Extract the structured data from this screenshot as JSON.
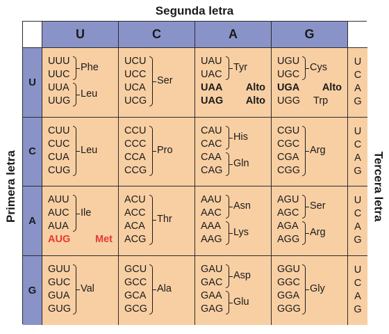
{
  "titles": {
    "second": "Segunda letra",
    "first": "Primera letra",
    "third": "Tercera letra"
  },
  "bases": [
    "U",
    "C",
    "A",
    "G"
  ],
  "colors": {
    "header": "#8a93c8",
    "cell": "#f8cfa3",
    "start": "#e53935",
    "border": "#2b2b2b"
  },
  "cells": [
    [
      {
        "codons": [
          "UUU",
          "UUC",
          "UUA",
          "UUG"
        ],
        "groups": [
          {
            "rows": [
              0,
              1
            ],
            "aa": "Phe"
          },
          {
            "rows": [
              2,
              3
            ],
            "aa": "Leu"
          }
        ]
      },
      {
        "codons": [
          "UCU",
          "UCC",
          "UCA",
          "UCG"
        ],
        "groups": [
          {
            "rows": [
              0,
              3
            ],
            "aa": "Ser"
          }
        ]
      },
      {
        "codons": [
          "UAU",
          "UAC",
          "UAA",
          "UAG"
        ],
        "groups": [
          {
            "rows": [
              0,
              1
            ],
            "aa": "Tyr"
          },
          {
            "rows": [
              2,
              2
            ],
            "aa": "Alto",
            "style": "bold"
          },
          {
            "rows": [
              3,
              3
            ],
            "aa": "Alto",
            "style": "bold"
          }
        ]
      },
      {
        "codons": [
          "UGU",
          "UGC",
          "UGA",
          "UGG"
        ],
        "groups": [
          {
            "rows": [
              0,
              1
            ],
            "aa": "Cys"
          },
          {
            "rows": [
              2,
              2
            ],
            "aa": "Alto",
            "style": "bold"
          },
          {
            "rows": [
              3,
              3
            ],
            "aa": "Trp"
          }
        ]
      }
    ],
    [
      {
        "codons": [
          "CUU",
          "CUC",
          "CUA",
          "CUG"
        ],
        "groups": [
          {
            "rows": [
              0,
              3
            ],
            "aa": "Leu"
          }
        ]
      },
      {
        "codons": [
          "CCU",
          "CCC",
          "CCA",
          "CCG"
        ],
        "groups": [
          {
            "rows": [
              0,
              3
            ],
            "aa": "Pro"
          }
        ]
      },
      {
        "codons": [
          "CAU",
          "CAC",
          "CAA",
          "CAG"
        ],
        "groups": [
          {
            "rows": [
              0,
              1
            ],
            "aa": "His"
          },
          {
            "rows": [
              2,
              3
            ],
            "aa": "Gln"
          }
        ]
      },
      {
        "codons": [
          "CGU",
          "CGC",
          "CGA",
          "CGG"
        ],
        "groups": [
          {
            "rows": [
              0,
              3
            ],
            "aa": "Arg"
          }
        ]
      }
    ],
    [
      {
        "codons": [
          "AUU",
          "AUC",
          "AUA",
          "AUG"
        ],
        "groups": [
          {
            "rows": [
              0,
              2
            ],
            "aa": "Ile"
          },
          {
            "rows": [
              3,
              3
            ],
            "aa": "Met",
            "style": "red"
          }
        ]
      },
      {
        "codons": [
          "ACU",
          "ACC",
          "ACA",
          "ACG"
        ],
        "groups": [
          {
            "rows": [
              0,
              3
            ],
            "aa": "Thr"
          }
        ]
      },
      {
        "codons": [
          "AAU",
          "AAC",
          "AAA",
          "AAG"
        ],
        "groups": [
          {
            "rows": [
              0,
              1
            ],
            "aa": "Asn"
          },
          {
            "rows": [
              2,
              3
            ],
            "aa": "Lys"
          }
        ]
      },
      {
        "codons": [
          "AGU",
          "AGC",
          "AGA",
          "AGG"
        ],
        "groups": [
          {
            "rows": [
              0,
              1
            ],
            "aa": "Ser"
          },
          {
            "rows": [
              2,
              3
            ],
            "aa": "Arg"
          }
        ]
      }
    ],
    [
      {
        "codons": [
          "GUU",
          "GUC",
          "GUA",
          "GUG"
        ],
        "groups": [
          {
            "rows": [
              0,
              3
            ],
            "aa": "Val"
          }
        ]
      },
      {
        "codons": [
          "GCU",
          "GCC",
          "GCA",
          "GCG"
        ],
        "groups": [
          {
            "rows": [
              0,
              3
            ],
            "aa": "Ala"
          }
        ]
      },
      {
        "codons": [
          "GAU",
          "GAC",
          "GAA",
          "GAG"
        ],
        "groups": [
          {
            "rows": [
              0,
              1
            ],
            "aa": "Asp"
          },
          {
            "rows": [
              2,
              3
            ],
            "aa": "Glu"
          }
        ]
      },
      {
        "codons": [
          "GGU",
          "GGC",
          "GGA",
          "GGG"
        ],
        "groups": [
          {
            "rows": [
              0,
              3
            ],
            "aa": "Gly"
          }
        ]
      }
    ]
  ]
}
